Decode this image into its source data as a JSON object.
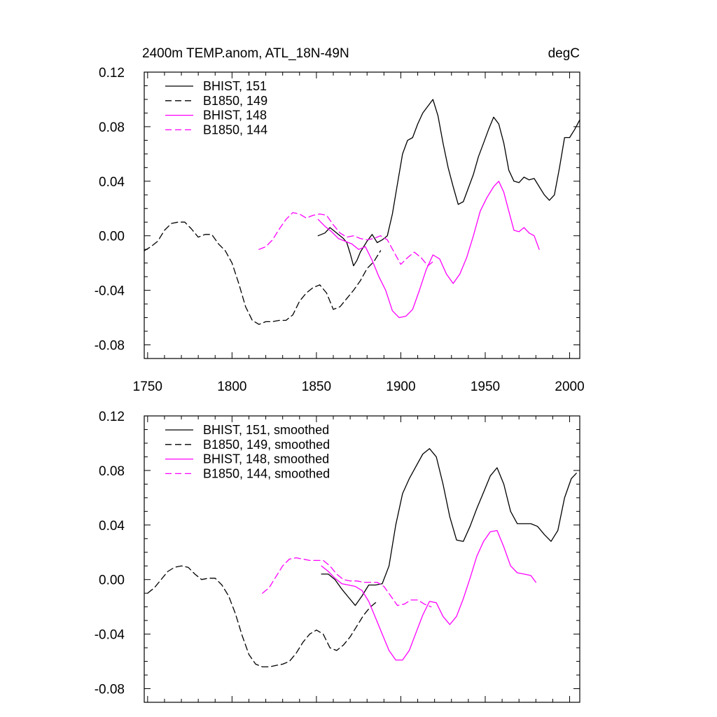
{
  "header": {
    "title": "2400m TEMP.anom, ATL_18N-49N",
    "units": "degC"
  },
  "styles": {
    "black": "#000000",
    "magenta": "#ff00ff"
  },
  "chart_data": [
    {
      "type": "line",
      "panel": "top",
      "xlim": [
        1748,
        2006
      ],
      "ylim": [
        -0.09,
        0.12
      ],
      "yticks": [
        "0.12",
        "0.08",
        "0.04",
        "0.00",
        "-0.04",
        "-0.08"
      ],
      "xticks": [
        "1750",
        "1800",
        "1850",
        "1900",
        "1950",
        "2000"
      ],
      "series": [
        {
          "name": "BHIST, 151",
          "color": "#000000",
          "dash": "solid",
          "x": [
            1851,
            1855,
            1858,
            1862,
            1866,
            1868,
            1870,
            1872,
            1874,
            1876,
            1880,
            1883,
            1886,
            1889,
            1892,
            1895,
            1898,
            1901,
            1904,
            1907,
            1910,
            1913,
            1916,
            1919,
            1922,
            1925,
            1928,
            1931,
            1934,
            1937,
            1940,
            1943,
            1946,
            1949,
            1952,
            1955,
            1958,
            1961,
            1964,
            1967,
            1970,
            1973,
            1976,
            1979,
            1982,
            1985,
            1988,
            1991,
            1994,
            1997,
            2000,
            2003,
            2006
          ],
          "y": [
            0.0,
            0.002,
            0.006,
            0.002,
            -0.002,
            -0.005,
            -0.013,
            -0.022,
            -0.018,
            -0.012,
            -0.004,
            0.001,
            -0.005,
            -0.003,
            0.0,
            0.016,
            0.038,
            0.06,
            0.07,
            0.072,
            0.082,
            0.09,
            0.095,
            0.1,
            0.088,
            0.068,
            0.05,
            0.036,
            0.023,
            0.025,
            0.035,
            0.045,
            0.058,
            0.068,
            0.078,
            0.087,
            0.082,
            0.068,
            0.048,
            0.04,
            0.039,
            0.043,
            0.041,
            0.042,
            0.036,
            0.03,
            0.026,
            0.03,
            0.05,
            0.072,
            0.072,
            0.078,
            0.085
          ]
        },
        {
          "name": "B1850, 149",
          "color": "#000000",
          "dash": "dashed",
          "x": [
            1748,
            1752,
            1756,
            1760,
            1764,
            1768,
            1772,
            1776,
            1780,
            1784,
            1788,
            1792,
            1796,
            1800,
            1804,
            1808,
            1812,
            1816,
            1820,
            1824,
            1828,
            1832,
            1836,
            1840,
            1844,
            1848,
            1852,
            1856,
            1860,
            1864,
            1868,
            1872,
            1876,
            1880,
            1884,
            1888
          ],
          "y": [
            -0.011,
            -0.008,
            -0.004,
            0.004,
            0.009,
            0.01,
            0.01,
            0.005,
            -0.001,
            0.001,
            0.001,
            -0.006,
            -0.011,
            -0.02,
            -0.035,
            -0.052,
            -0.062,
            -0.065,
            -0.063,
            -0.063,
            -0.062,
            -0.062,
            -0.058,
            -0.048,
            -0.042,
            -0.038,
            -0.036,
            -0.042,
            -0.054,
            -0.052,
            -0.046,
            -0.04,
            -0.033,
            -0.024,
            -0.019,
            -0.011
          ]
        },
        {
          "name": "BHIST, 148",
          "color": "#ff00ff",
          "dash": "solid",
          "x": [
            1851,
            1855,
            1859,
            1863,
            1867,
            1871,
            1875,
            1879,
            1883,
            1887,
            1891,
            1895,
            1899,
            1903,
            1907,
            1911,
            1915,
            1919,
            1923,
            1927,
            1931,
            1935,
            1939,
            1943,
            1947,
            1951,
            1955,
            1958,
            1961,
            1964,
            1967,
            1970,
            1973,
            1976,
            1979,
            1982
          ],
          "y": [
            0.012,
            0.007,
            0.003,
            -0.002,
            -0.004,
            -0.006,
            -0.01,
            -0.008,
            -0.018,
            -0.03,
            -0.04,
            -0.055,
            -0.06,
            -0.059,
            -0.054,
            -0.04,
            -0.025,
            -0.014,
            -0.017,
            -0.028,
            -0.035,
            -0.028,
            -0.016,
            0.0,
            0.018,
            0.028,
            0.036,
            0.04,
            0.032,
            0.018,
            0.004,
            0.003,
            0.006,
            0.002,
            0.0,
            -0.01
          ]
        },
        {
          "name": "B1850, 144",
          "color": "#ff00ff",
          "dash": "dashed",
          "x": [
            1816,
            1820,
            1824,
            1828,
            1832,
            1836,
            1840,
            1844,
            1848,
            1852,
            1856,
            1860,
            1864,
            1868,
            1872,
            1876,
            1880,
            1884,
            1888,
            1892,
            1896,
            1900,
            1904,
            1908,
            1912,
            1916,
            1920
          ],
          "y": [
            -0.01,
            -0.008,
            -0.003,
            0.005,
            0.012,
            0.017,
            0.016,
            0.013,
            0.015,
            0.016,
            0.015,
            0.008,
            0.002,
            -0.001,
            0.0,
            -0.002,
            -0.003,
            -0.002,
            0.0,
            -0.003,
            -0.012,
            -0.021,
            -0.016,
            -0.012,
            -0.016,
            -0.022,
            -0.018
          ]
        }
      ],
      "legend": {
        "placement": "top-left",
        "entries": [
          {
            "label": "BHIST, 151",
            "color": "#000000",
            "dash": "solid"
          },
          {
            "label": "B1850, 149",
            "color": "#000000",
            "dash": "dashed"
          },
          {
            "label": "BHIST, 148",
            "color": "#ff00ff",
            "dash": "solid"
          },
          {
            "label": "B1850, 144",
            "color": "#ff00ff",
            "dash": "dashed"
          }
        ]
      }
    },
    {
      "type": "line",
      "panel": "bottom",
      "xlim": [
        1748,
        2006
      ],
      "ylim": [
        -0.09,
        0.12
      ],
      "yticks": [
        "0.12",
        "0.08",
        "0.04",
        "0.00",
        "-0.04",
        "-0.08"
      ],
      "series": [
        {
          "name": "BHIST, 151, smoothed",
          "color": "#000000",
          "dash": "solid",
          "x": [
            1853,
            1857,
            1861,
            1865,
            1869,
            1873,
            1877,
            1881,
            1885,
            1889,
            1893,
            1897,
            1901,
            1905,
            1909,
            1913,
            1917,
            1921,
            1925,
            1929,
            1933,
            1937,
            1941,
            1945,
            1949,
            1953,
            1957,
            1961,
            1965,
            1969,
            1973,
            1977,
            1981,
            1985,
            1989,
            1993,
            1997,
            2001,
            2004
          ],
          "y": [
            0.004,
            0.004,
            0.0,
            -0.007,
            -0.013,
            -0.019,
            -0.012,
            -0.004,
            -0.004,
            -0.003,
            0.01,
            0.04,
            0.063,
            0.074,
            0.083,
            0.092,
            0.096,
            0.09,
            0.07,
            0.046,
            0.029,
            0.028,
            0.039,
            0.052,
            0.064,
            0.076,
            0.082,
            0.07,
            0.05,
            0.041,
            0.041,
            0.041,
            0.039,
            0.033,
            0.028,
            0.036,
            0.06,
            0.074,
            0.078
          ]
        },
        {
          "name": "B1850, 149, smoothed",
          "color": "#000000",
          "dash": "dashed",
          "x": [
            1750,
            1754,
            1758,
            1762,
            1766,
            1770,
            1774,
            1778,
            1782,
            1786,
            1790,
            1794,
            1798,
            1802,
            1806,
            1810,
            1814,
            1818,
            1822,
            1826,
            1830,
            1834,
            1838,
            1842,
            1846,
            1850,
            1854,
            1858,
            1862,
            1866,
            1870,
            1874,
            1878,
            1882,
            1886
          ],
          "y": [
            -0.01,
            -0.006,
            0.0,
            0.006,
            0.009,
            0.01,
            0.009,
            0.004,
            0.0,
            0.001,
            0.001,
            -0.004,
            -0.012,
            -0.025,
            -0.041,
            -0.055,
            -0.062,
            -0.064,
            -0.064,
            -0.063,
            -0.062,
            -0.06,
            -0.054,
            -0.046,
            -0.04,
            -0.037,
            -0.04,
            -0.05,
            -0.052,
            -0.048,
            -0.042,
            -0.034,
            -0.026,
            -0.02,
            -0.016
          ]
        },
        {
          "name": "BHIST, 148, smoothed",
          "color": "#ff00ff",
          "dash": "solid",
          "x": [
            1853,
            1857,
            1861,
            1865,
            1869,
            1873,
            1877,
            1881,
            1885,
            1889,
            1893,
            1897,
            1901,
            1905,
            1909,
            1913,
            1917,
            1921,
            1925,
            1929,
            1933,
            1937,
            1941,
            1945,
            1949,
            1953,
            1957,
            1961,
            1965,
            1969,
            1973,
            1977,
            1980
          ],
          "y": [
            0.01,
            0.006,
            0.001,
            -0.003,
            -0.004,
            -0.005,
            -0.008,
            -0.016,
            -0.028,
            -0.04,
            -0.052,
            -0.059,
            -0.059,
            -0.052,
            -0.039,
            -0.026,
            -0.016,
            -0.017,
            -0.027,
            -0.033,
            -0.027,
            -0.014,
            0.001,
            0.017,
            0.028,
            0.035,
            0.036,
            0.024,
            0.01,
            0.005,
            0.004,
            0.003,
            -0.002
          ]
        },
        {
          "name": "B1850, 144, smoothed",
          "color": "#ff00ff",
          "dash": "dashed",
          "x": [
            1818,
            1822,
            1826,
            1830,
            1834,
            1838,
            1842,
            1846,
            1850,
            1854,
            1858,
            1862,
            1866,
            1870,
            1874,
            1878,
            1882,
            1886,
            1890,
            1894,
            1898,
            1902,
            1906,
            1910,
            1914,
            1918
          ],
          "y": [
            -0.01,
            -0.006,
            0.002,
            0.01,
            0.015,
            0.016,
            0.015,
            0.014,
            0.014,
            0.014,
            0.01,
            0.004,
            0.0,
            -0.001,
            -0.001,
            -0.002,
            -0.002,
            -0.002,
            -0.005,
            -0.012,
            -0.019,
            -0.018,
            -0.015,
            -0.015,
            -0.018,
            -0.02
          ]
        }
      ],
      "legend": {
        "placement": "top-left",
        "entries": [
          {
            "label": "BHIST, 151, smoothed",
            "color": "#000000",
            "dash": "solid"
          },
          {
            "label": "B1850, 149, smoothed",
            "color": "#000000",
            "dash": "dashed"
          },
          {
            "label": "BHIST, 148, smoothed",
            "color": "#ff00ff",
            "dash": "solid"
          },
          {
            "label": "B1850, 144, smoothed",
            "color": "#ff00ff",
            "dash": "dashed"
          }
        ]
      }
    }
  ]
}
